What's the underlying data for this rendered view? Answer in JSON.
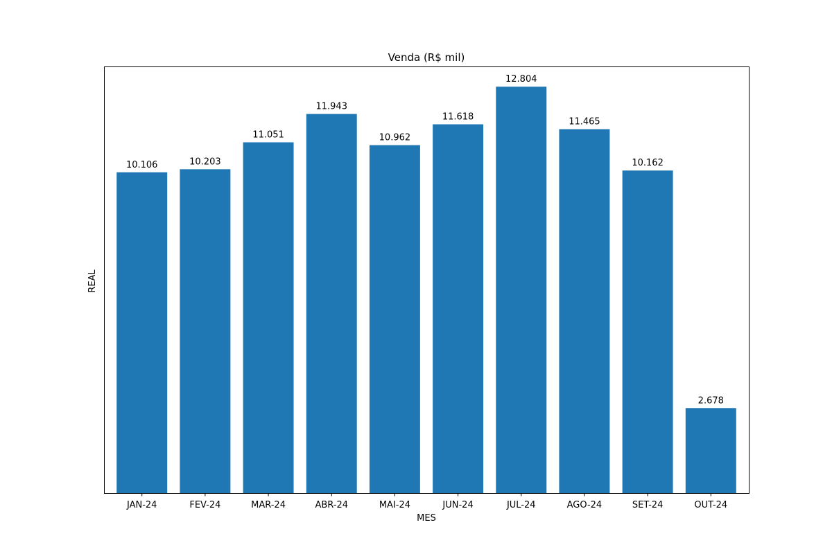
{
  "chart_data": {
    "type": "bar",
    "title": "Venda (R$ mil)",
    "xlabel": "MES",
    "ylabel": "REAL",
    "categories": [
      "JAN-24",
      "FEV-24",
      "MAR-24",
      "ABR-24",
      "MAI-24",
      "JUN-24",
      "JUL-24",
      "AGO-24",
      "SET-24",
      "OUT-24"
    ],
    "values": [
      10.106,
      10.203,
      11.051,
      11.943,
      10.962,
      11.618,
      12.804,
      11.465,
      10.162,
      2.678
    ],
    "value_labels": [
      "10.106",
      "10.203",
      "11.051",
      "11.943",
      "10.962",
      "11.618",
      "12.804",
      "11.465",
      "10.162",
      "2.678"
    ],
    "ylim": [
      0,
      13.44
    ],
    "y_ticks_visible": false,
    "grid": false,
    "legend": "none",
    "bar_color": "#1f77b4"
  }
}
